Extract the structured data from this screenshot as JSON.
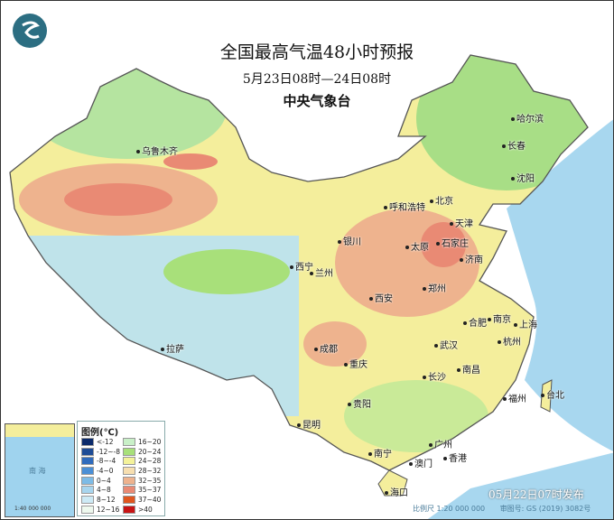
{
  "header": {
    "title": "全国最高气温48小时预报",
    "period": "5月23日08时—24日08时",
    "issuer": "中央气象台"
  },
  "cities": [
    {
      "name": "乌鲁木齐"
    },
    {
      "name": "哈尔滨"
    },
    {
      "name": "长春"
    },
    {
      "name": "沈阳"
    },
    {
      "name": "北京"
    },
    {
      "name": "天津"
    },
    {
      "name": "呼和浩特"
    },
    {
      "name": "石家庄"
    },
    {
      "name": "太原"
    },
    {
      "name": "济南"
    },
    {
      "name": "银川"
    },
    {
      "name": "西宁"
    },
    {
      "name": "兰州"
    },
    {
      "name": "郑州"
    },
    {
      "name": "西安"
    },
    {
      "name": "合肥"
    },
    {
      "name": "南京"
    },
    {
      "name": "上海"
    },
    {
      "name": "杭州"
    },
    {
      "name": "武汉"
    },
    {
      "name": "成都"
    },
    {
      "name": "重庆"
    },
    {
      "name": "拉萨"
    },
    {
      "name": "长沙"
    },
    {
      "name": "南昌"
    },
    {
      "name": "福州"
    },
    {
      "name": "台北"
    },
    {
      "name": "贵阳"
    },
    {
      "name": "昆明"
    },
    {
      "name": "南宁"
    },
    {
      "name": "广州"
    },
    {
      "name": "澳门"
    },
    {
      "name": "香港"
    },
    {
      "name": "海口"
    }
  ],
  "inset": {
    "sea_label": "南 海",
    "scale": "1:40 000 000"
  },
  "legend": {
    "title": "图例(℃)",
    "items": [
      {
        "label": "<-12",
        "color": "#0b2a6b"
      },
      {
        "label": "-12~-8",
        "color": "#1e4c96"
      },
      {
        "label": "-8~-4",
        "color": "#2f6bbd"
      },
      {
        "label": "-4~0",
        "color": "#4a8fd6"
      },
      {
        "label": "0~4",
        "color": "#7dbbe6"
      },
      {
        "label": "4~8",
        "color": "#a8d5ee"
      },
      {
        "label": "8~12",
        "color": "#cdeaf5"
      },
      {
        "label": "12~16",
        "color": "#eef9ee"
      },
      {
        "label": "16~20",
        "color": "#c9f0c8"
      },
      {
        "label": "20~24",
        "color": "#a8e07a"
      },
      {
        "label": "24~28",
        "color": "#f4f29a"
      },
      {
        "label": "28~32",
        "color": "#f7dfb0"
      },
      {
        "label": "32~35",
        "color": "#eeb38e"
      },
      {
        "label": "35~37",
        "color": "#e98a74"
      },
      {
        "label": "37~40",
        "color": "#e0561f"
      },
      {
        "label": ">40",
        "color": "#c81414"
      }
    ]
  },
  "footer": {
    "published": "05月22日07时发布",
    "scale": "比例尺 1:20 000 000",
    "map_approval": "审图号: GS (2019) 3082号"
  }
}
